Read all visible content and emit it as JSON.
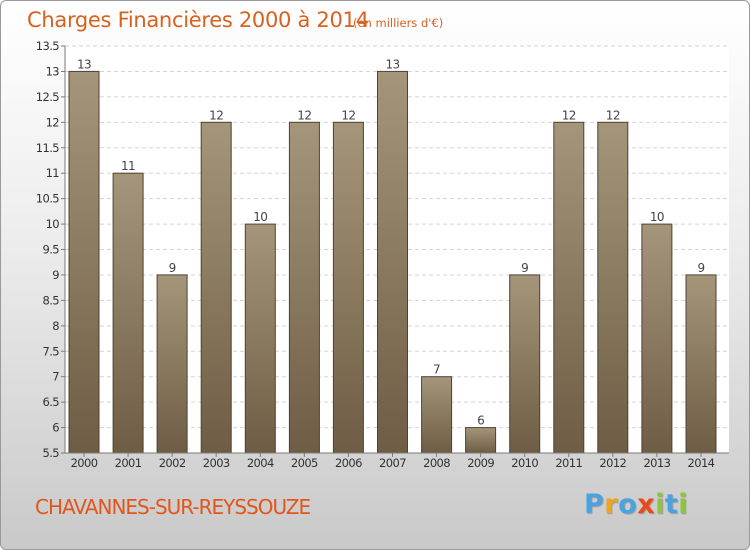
{
  "header": {
    "title": "Charges Financières 2000 à 2014",
    "unit": "(en milliers d'€)"
  },
  "footer": {
    "commune": "CHAVANNES-SUR-REYSSOUZE",
    "brand": "Proxiti",
    "brand_letters": [
      {
        "ch": "P",
        "color": "#4aa3df"
      },
      {
        "ch": "r",
        "color": "#f0a51e"
      },
      {
        "ch": "o",
        "color": "#4aa3df"
      },
      {
        "ch": "x",
        "color": "#e84a1c"
      },
      {
        "ch": "i",
        "color": "#8cc63f"
      },
      {
        "ch": "t",
        "color": "#4aa3df"
      },
      {
        "ch": "i",
        "color": "#8cc63f"
      }
    ]
  },
  "chart_data": {
    "type": "bar",
    "categories": [
      "2000",
      "2001",
      "2002",
      "2003",
      "2004",
      "2005",
      "2006",
      "2007",
      "2008",
      "2009",
      "2010",
      "2011",
      "2012",
      "2013",
      "2014"
    ],
    "values": [
      13,
      11,
      9,
      12,
      10,
      12,
      12,
      13,
      7,
      6,
      9,
      12,
      12,
      10,
      9
    ],
    "data_labels": [
      "13",
      "11",
      "9",
      "12",
      "10",
      "12",
      "12",
      "13",
      "7",
      "6",
      "9",
      "12",
      "12",
      "10",
      "9"
    ],
    "yticks": [
      "5.5",
      "6",
      "6.5",
      "7",
      "7.5",
      "8",
      "8.5",
      "9",
      "9.5",
      "10",
      "10.5",
      "11",
      "11.5",
      "12",
      "12.5",
      "13",
      "13.5"
    ],
    "ylim": [
      5.5,
      13.5
    ],
    "grid": true,
    "colors": {
      "bar_top": "#a5967b",
      "bar_bottom": "#6e5d44",
      "bar_edge": "#4f4231",
      "grid": "#d4d4d4",
      "axis": "#7a7a7a"
    }
  }
}
